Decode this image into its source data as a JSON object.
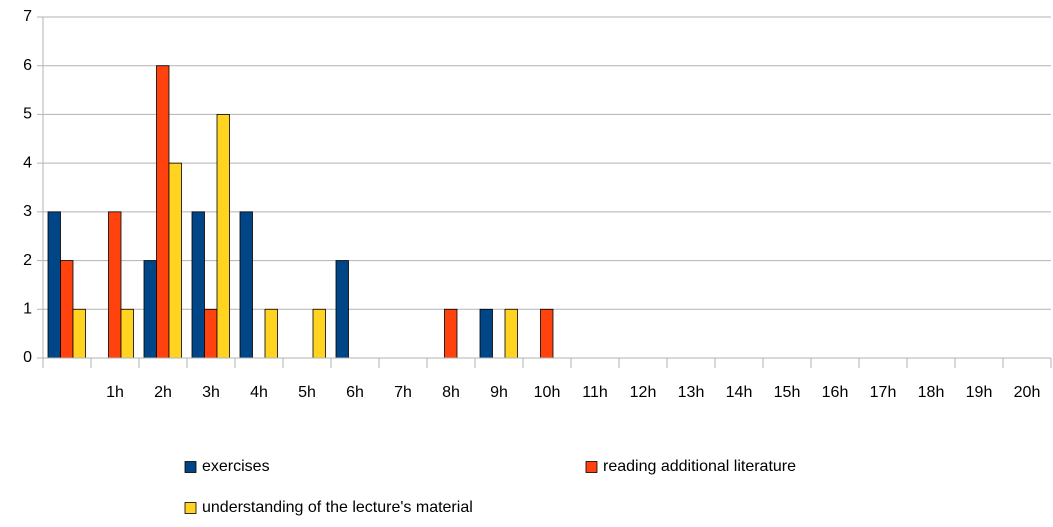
{
  "chart_data": {
    "type": "bar",
    "categories": [
      null,
      "1h",
      "2h",
      "3h",
      "4h",
      "5h",
      "6h",
      "7h",
      "8h",
      "9h",
      "10h",
      "11h",
      "12h",
      "13h",
      "14h",
      "15h",
      "16h",
      "17h",
      "18h",
      "19h",
      "20h"
    ],
    "series": [
      {
        "name": "exercises",
        "color": "#004586",
        "values": [
          3,
          0,
          2,
          3,
          3,
          0,
          2,
          0,
          0,
          1,
          0,
          0,
          0,
          0,
          0,
          0,
          0,
          0,
          0,
          0,
          0
        ]
      },
      {
        "name": "reading additional literature",
        "color": "#ff420e",
        "values": [
          2,
          3,
          6,
          1,
          0,
          0,
          0,
          0,
          1,
          0,
          1,
          0,
          0,
          0,
          0,
          0,
          0,
          0,
          0,
          0,
          0
        ]
      },
      {
        "name": "understanding of the lecture's material",
        "color": "#ffd320",
        "values": [
          1,
          1,
          4,
          5,
          1,
          1,
          0,
          0,
          0,
          1,
          0,
          0,
          0,
          0,
          0,
          0,
          0,
          0,
          0,
          0,
          0
        ]
      }
    ],
    "ylim": [
      0,
      7
    ],
    "yticks": [
      0,
      1,
      2,
      3,
      4,
      5,
      6,
      7
    ],
    "grid": true
  }
}
